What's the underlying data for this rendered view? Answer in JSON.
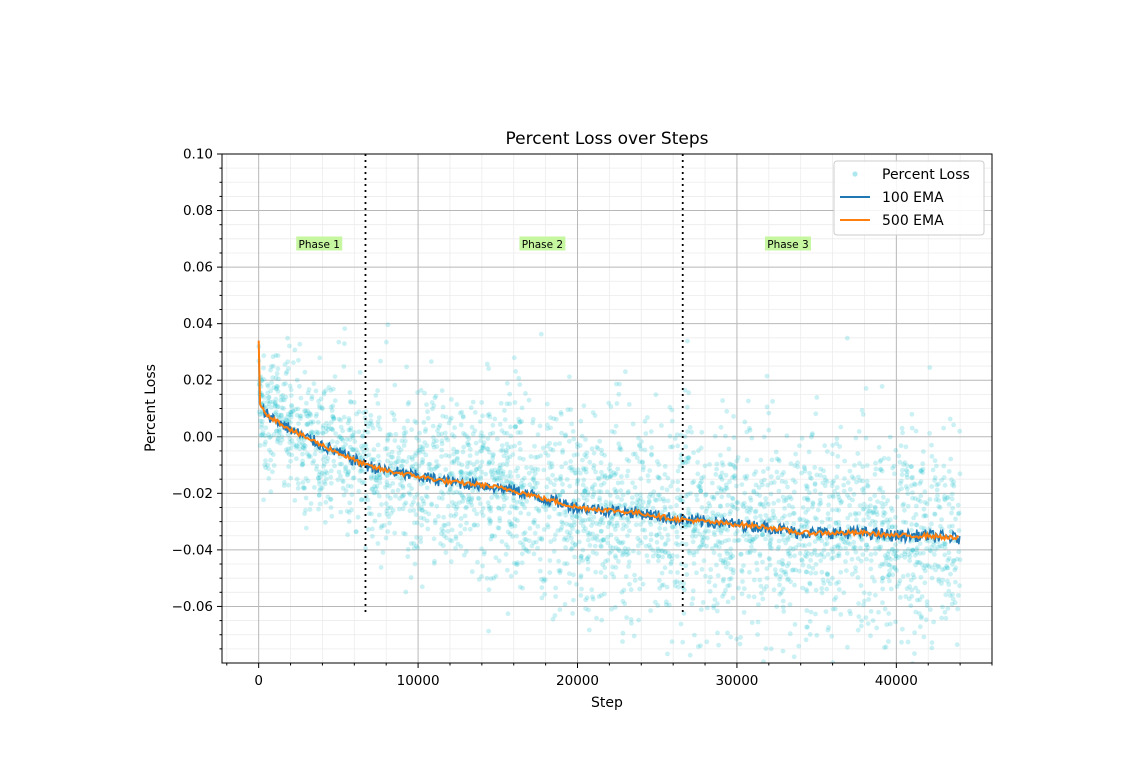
{
  "chart_data": {
    "type": "scatter",
    "title": "Percent Loss over Steps",
    "xlabel": "Step",
    "ylabel": "Percent Loss",
    "xlim": [
      -2300,
      46000
    ],
    "ylim": [
      -0.08,
      0.1
    ],
    "xticks": [
      0,
      10000,
      20000,
      30000,
      40000
    ],
    "xtick_labels": [
      "0",
      "10000",
      "20000",
      "30000",
      "40000"
    ],
    "yticks": [
      -0.06,
      -0.04,
      -0.02,
      0.0,
      0.02,
      0.04,
      0.06,
      0.08,
      0.1
    ],
    "ytick_labels": [
      "−0.06",
      "−0.04",
      "−0.02",
      "0.00",
      "0.02",
      "0.04",
      "0.06",
      "0.08",
      "0.10"
    ],
    "grid": true,
    "minor_grid": true,
    "legend_position": "top-right",
    "phase_boundaries": [
      6700,
      26600
    ],
    "phases": [
      {
        "label": "Phase 1",
        "x": 3800,
        "y": 0.068
      },
      {
        "label": "Phase 2",
        "x": 17800,
        "y": 0.068
      },
      {
        "label": "Phase 3",
        "x": 33200,
        "y": 0.068
      }
    ],
    "series": [
      {
        "name": "Percent Loss",
        "kind": "scatter",
        "color": "#17becf",
        "x_range": [
          0,
          44000
        ],
        "note_points": "dense cloud around the EMA trend, spread roughly ±0.03"
      },
      {
        "name": "100 EMA",
        "kind": "line",
        "color": "#1f77b4",
        "x": [
          0,
          50,
          300,
          1000,
          2500,
          4000,
          5500,
          6700,
          8000,
          10000,
          12000,
          14000,
          16000,
          18000,
          20000,
          22000,
          24000,
          26000,
          28000,
          30000,
          32000,
          34000,
          36000,
          38000,
          40000,
          42000,
          44000
        ],
        "y": [
          0.033,
          0.012,
          0.009,
          0.006,
          0.001,
          -0.003,
          -0.007,
          -0.01,
          -0.012,
          -0.014,
          -0.016,
          -0.017,
          -0.019,
          -0.022,
          -0.025,
          -0.026,
          -0.027,
          -0.029,
          -0.03,
          -0.031,
          -0.032,
          -0.034,
          -0.034,
          -0.034,
          -0.035,
          -0.035,
          -0.036
        ]
      },
      {
        "name": "500 EMA",
        "kind": "line",
        "color": "#ff7f0e",
        "x": [
          0,
          50,
          300,
          1000,
          2500,
          4000,
          5500,
          6700,
          8000,
          10000,
          12000,
          14000,
          16000,
          18000,
          20000,
          22000,
          24000,
          26000,
          28000,
          30000,
          32000,
          34000,
          36000,
          38000,
          40000,
          42000,
          44000
        ],
        "y": [
          0.034,
          0.012,
          0.009,
          0.006,
          0.001,
          -0.003,
          -0.007,
          -0.01,
          -0.012,
          -0.014,
          -0.016,
          -0.017,
          -0.019,
          -0.022,
          -0.025,
          -0.026,
          -0.027,
          -0.029,
          -0.03,
          -0.031,
          -0.032,
          -0.034,
          -0.034,
          -0.034,
          -0.035,
          -0.035,
          -0.036
        ]
      }
    ]
  }
}
